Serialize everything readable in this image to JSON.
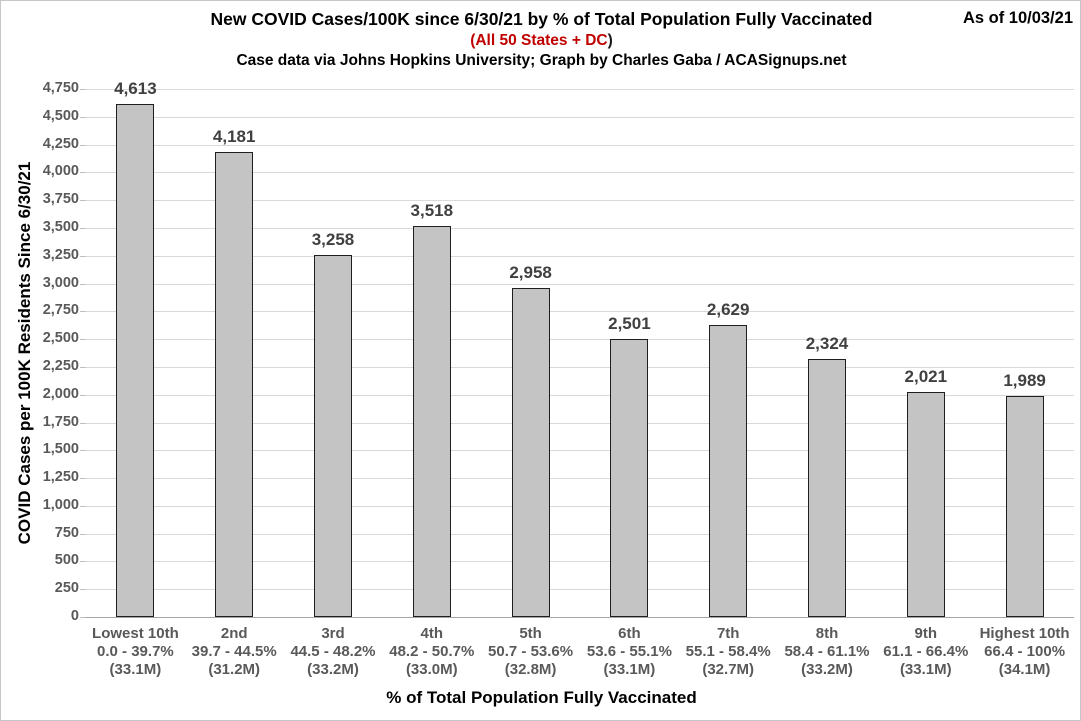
{
  "header": {
    "title": "New COVID Cases/100K since 6/30/21 by % of Total Population Fully Vaccinated",
    "as_of": "As of 10/03/21",
    "subtitle_main": "(All 50 States + DC",
    "subtitle_close": ")",
    "credit": "Case data via Johns Hopkins University; Graph by Charles Gaba / ACASignups.net"
  },
  "colors": {
    "accent_red": "#c00000",
    "bar_fill": "#c4c4c4",
    "bar_border": "#1f1f1f",
    "gridline": "#d9d9d9",
    "axis_line": "#a6a6a6",
    "label_gray": "#595959",
    "value_label_gray": "#404040"
  },
  "chart_data": {
    "type": "bar",
    "title": "New COVID Cases/100K since 6/30/21 by % of Total Population Fully Vaccinated",
    "subtitle": "(All 50 States + DC)",
    "credit": "Case data via Johns Hopkins University; Graph by Charles Gaba / ACASignups.net",
    "as_of": "As of 10/03/21",
    "xlabel": "% of Total Population Fully Vaccinated",
    "ylabel": "COVID Cases per 100K Residents Since 6/30/21",
    "ylim": [
      0,
      4750
    ],
    "ytick_step": 250,
    "grid": true,
    "legend": false,
    "categories": [
      {
        "decile": "Lowest 10th",
        "range": "0.0 - 39.7%",
        "population": "(33.1M)"
      },
      {
        "decile": "2nd",
        "range": "39.7 - 44.5%",
        "population": "(31.2M)"
      },
      {
        "decile": "3rd",
        "range": "44.5 - 48.2%",
        "population": "(33.2M)"
      },
      {
        "decile": "4th",
        "range": "48.2 - 50.7%",
        "population": "(33.0M)"
      },
      {
        "decile": "5th",
        "range": "50.7 - 53.6%",
        "population": "(32.8M)"
      },
      {
        "decile": "6th",
        "range": "53.6 - 55.1%",
        "population": "(33.1M)"
      },
      {
        "decile": "7th",
        "range": "55.1 - 58.4%",
        "population": "(32.7M)"
      },
      {
        "decile": "8th",
        "range": "58.4 - 61.1%",
        "population": "(33.2M)"
      },
      {
        "decile": "9th",
        "range": "61.1 - 66.4%",
        "population": "(33.1M)"
      },
      {
        "decile": "Highest 10th",
        "range": "66.4 - 100%",
        "population": "(34.1M)"
      }
    ],
    "values": [
      4613,
      4181,
      3258,
      3518,
      2958,
      2501,
      2629,
      2324,
      2021,
      1989
    ],
    "value_labels": [
      "4,613",
      "4,181",
      "3,258",
      "3,518",
      "2,958",
      "2,501",
      "2,629",
      "2,324",
      "2,021",
      "1,989"
    ]
  }
}
